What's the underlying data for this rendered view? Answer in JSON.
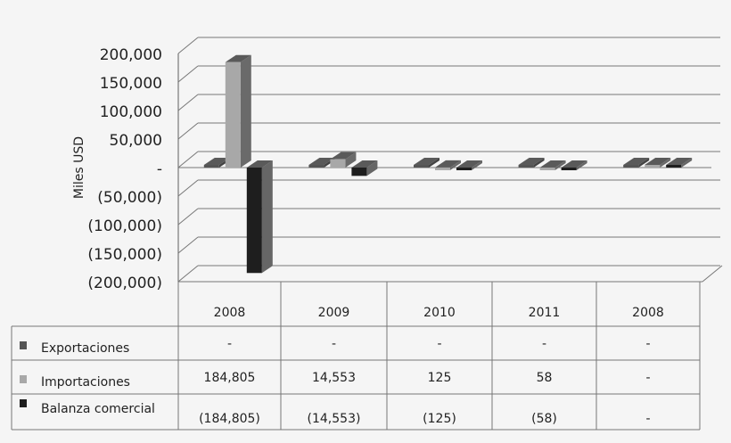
{
  "chart_data": {
    "type": "bar",
    "ylabel": "Miles USD",
    "ylim": [
      -200000,
      200000
    ],
    "yticks": [
      {
        "v": 200000,
        "label": "200,000"
      },
      {
        "v": 150000,
        "label": "150,000"
      },
      {
        "v": 100000,
        "label": "100,000"
      },
      {
        "v": 50000,
        "label": "50,000"
      },
      {
        "v": 0,
        "label": "-"
      },
      {
        "v": -50000,
        "label": "(50,000)"
      },
      {
        "v": -100000,
        "label": "(100,000)"
      },
      {
        "v": -150000,
        "label": "(150,000)"
      },
      {
        "v": -200000,
        "label": "(200,000)"
      }
    ],
    "categories": [
      "2008",
      "2009",
      "2010",
      "2011",
      "2008"
    ],
    "series": [
      {
        "name": "Exportaciones",
        "color": "#555555",
        "values": [
          0,
          0,
          0,
          0,
          0
        ],
        "labels": [
          "-",
          "-",
          "-",
          "-",
          "-"
        ]
      },
      {
        "name": "Importaciones",
        "color": "#a8a8a8",
        "values": [
          184805,
          14553,
          125,
          58,
          0
        ],
        "labels": [
          "184,805",
          "14,553",
          "125",
          "58",
          "-"
        ]
      },
      {
        "name": "Balanza comercial",
        "color": "#1e1e1e",
        "values": [
          -184805,
          -14553,
          -125,
          -58,
          0
        ],
        "labels": [
          "(184,805)",
          "(14,553)",
          "(125)",
          "(58)",
          "-"
        ]
      }
    ],
    "three_d": true,
    "data_table": true
  }
}
